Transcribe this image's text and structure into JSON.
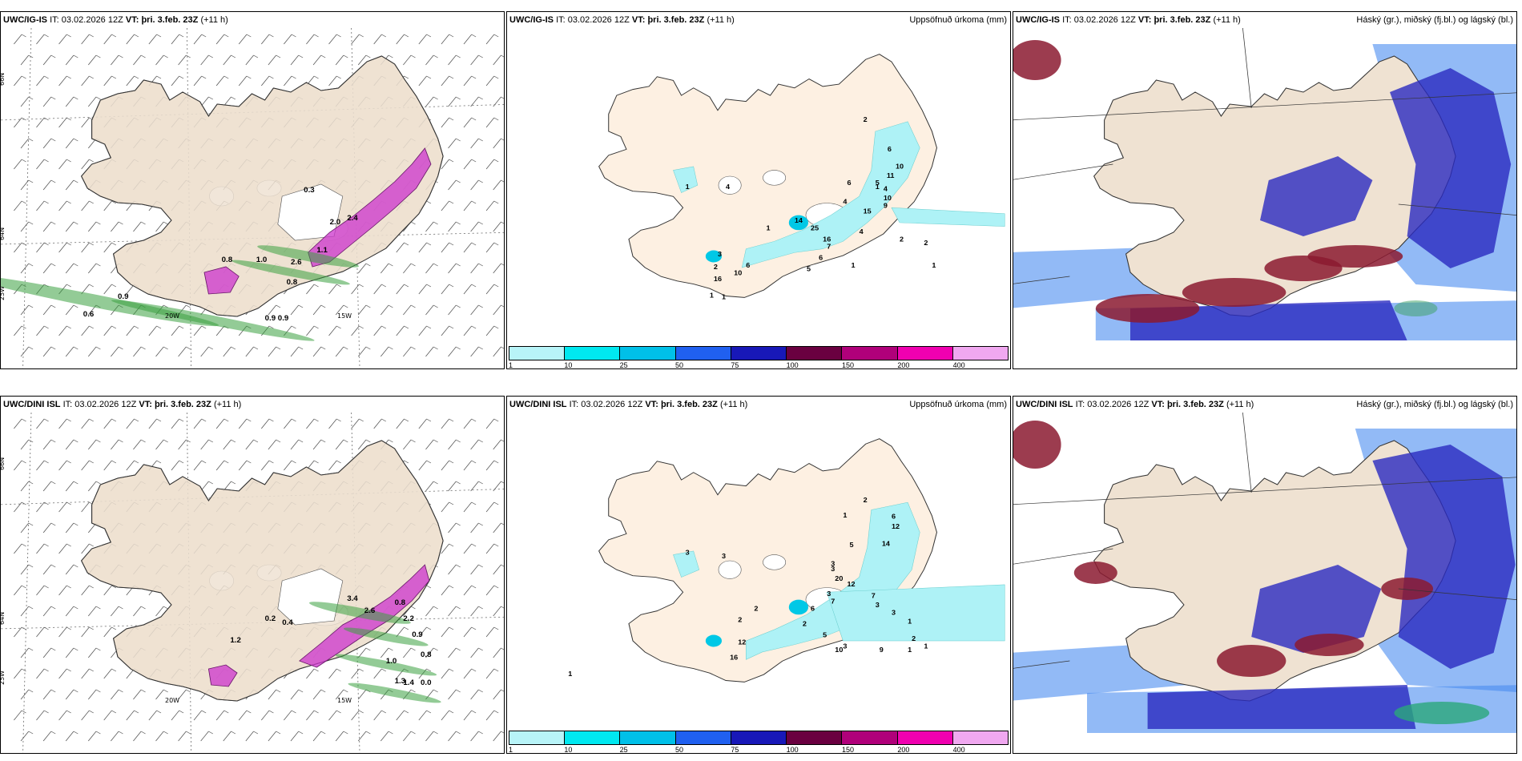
{
  "rows": [
    {
      "model": "UWC/IG-IS",
      "it_label": "IT:",
      "it_value": "03.02.2026 12Z",
      "vt_label": "VT:",
      "vt_value": "þri. 3.feb. 23Z",
      "lead": "(+11 h)"
    },
    {
      "model": "UWC/DINI ISL",
      "it_label": "IT:",
      "it_value": "03.02.2026 12Z",
      "vt_label": "VT:",
      "vt_value": "þri. 3.feb. 23Z",
      "lead": "(+11 h)"
    }
  ],
  "panel_titles": {
    "precip": "Uppsöfnuð úrkoma (mm)",
    "clouds": "Háský (gr.), miðský (fj.bl.) og lágský (bl.)"
  },
  "axes": {
    "lat_66": "66N",
    "lat_64": "64N",
    "lon_25": "25W",
    "lon_20": "20W",
    "lon_15": "15W"
  },
  "legend": {
    "labels": [
      "1",
      "10",
      "25",
      "50",
      "75",
      "100",
      "150",
      "200",
      "400"
    ],
    "colors": [
      "#b8f4f8",
      "#00e8f0",
      "#00c0e8",
      "#2060f0",
      "#1818b8",
      "#6a0040",
      "#b0007a",
      "#f000b0",
      "#f0a8f0"
    ]
  },
  "colors": {
    "land": "#efe2d2",
    "land_precip_panel": "#fdf0e2",
    "snow_pink": "#cc33cc",
    "rain_green": "#3aa040",
    "precip_cyan": "#aef2f6",
    "cloud_high": "#8b1a30",
    "cloud_mid": "#2b2bc0",
    "cloud_low": "#4a8cf0"
  },
  "top_row": {
    "snow_labels": [
      "0.9",
      "0.6",
      "0.8",
      "0.9",
      "0.9",
      "0.8",
      "1.0",
      "2.6",
      "1.1",
      "2.0",
      "2.4",
      "0.3"
    ],
    "precip_labels": [
      "2",
      "6",
      "10",
      "11",
      "5",
      "4",
      "10",
      "9",
      "15",
      "6",
      "4",
      "14",
      "25",
      "16",
      "7",
      "6",
      "5",
      "4",
      "2",
      "2",
      "1",
      "1",
      "1",
      "1",
      "4",
      "1",
      "3",
      "10",
      "6",
      "2",
      "16",
      "1",
      "1"
    ]
  },
  "bottom_row": {
    "snow_labels": [
      "0.8",
      "2.2",
      "0.9",
      "0.8",
      "1.0",
      "1.3",
      "1.4",
      "0.0",
      "1.2",
      "0.4",
      "0.2",
      "3.4",
      "2.6"
    ],
    "precip_labels": [
      "2",
      "1",
      "6",
      "12",
      "14",
      "5",
      "3",
      "3",
      "20",
      "12",
      "3",
      "7",
      "7",
      "3",
      "3",
      "6",
      "2",
      "5",
      "3",
      "1",
      "2",
      "1",
      "1",
      "10",
      "9",
      "2",
      "2",
      "3",
      "3",
      "12",
      "16",
      "1"
    ]
  }
}
